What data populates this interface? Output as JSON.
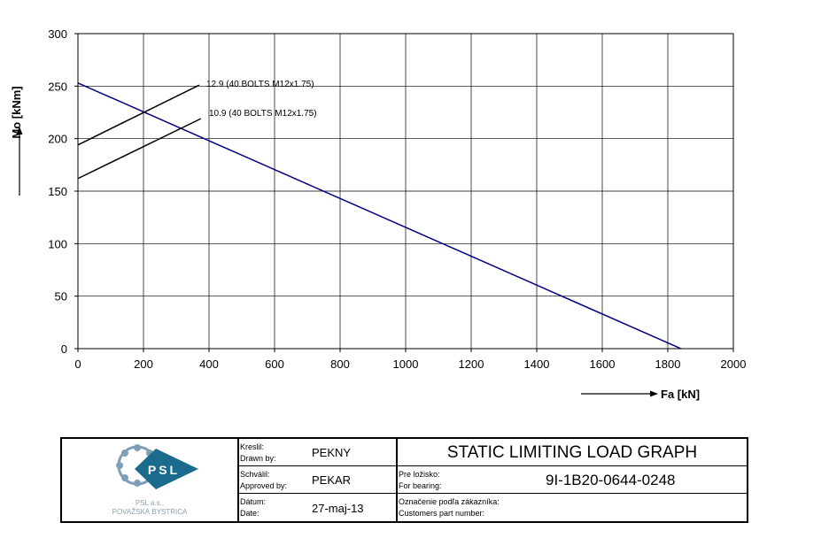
{
  "chart_data": {
    "type": "line",
    "xlabel": "Fa [kN]",
    "ylabel": "Mo [kNm]",
    "xlim": [
      0,
      2000
    ],
    "ylim": [
      0,
      300
    ],
    "xticks": [
      0,
      200,
      400,
      600,
      800,
      1000,
      1200,
      1400,
      1600,
      1800,
      2000
    ],
    "yticks": [
      0,
      50,
      100,
      150,
      200,
      250,
      300
    ],
    "grid": true,
    "series": [
      {
        "name": "",
        "color": "#000080",
        "x": [
          0,
          1840
        ],
        "y": [
          253,
          0
        ]
      },
      {
        "name": "12.9 (40 BOLTS M12x1.75)",
        "color": "#000000",
        "x": [
          0,
          370
        ],
        "y": [
          194,
          251
        ]
      },
      {
        "name": "10.9 (40 BOLTS M12x1.75)",
        "color": "#000000",
        "x": [
          0,
          375
        ],
        "y": [
          162,
          219
        ]
      }
    ]
  },
  "title_block": {
    "company_line1": "PSL a.s.,",
    "company_line2": "POVAŽSKÁ BYSTRICA",
    "logo_text": "PSL",
    "drawn_by_label_sk": "Kreslil:",
    "drawn_by_label_en": "Drawn by:",
    "drawn_by": "PEKNY",
    "approved_by_label_sk": "Schválil:",
    "approved_by_label_en": "Approved by:",
    "approved_by": "PEKAR",
    "date_label_sk": "Dátum:",
    "date_label_en": "Date:",
    "date": "27-maj-13",
    "title": "STATIC LIMITING LOAD GRAPH",
    "bearing_label_sk": "Pre ložisko:",
    "bearing_label_en": "For bearing:",
    "bearing": "9I-1B20-0644-0248",
    "customer_label_sk": "Označenie podľa zákazníka:",
    "customer_label_en": "Customers part number:",
    "customer_part": ""
  }
}
